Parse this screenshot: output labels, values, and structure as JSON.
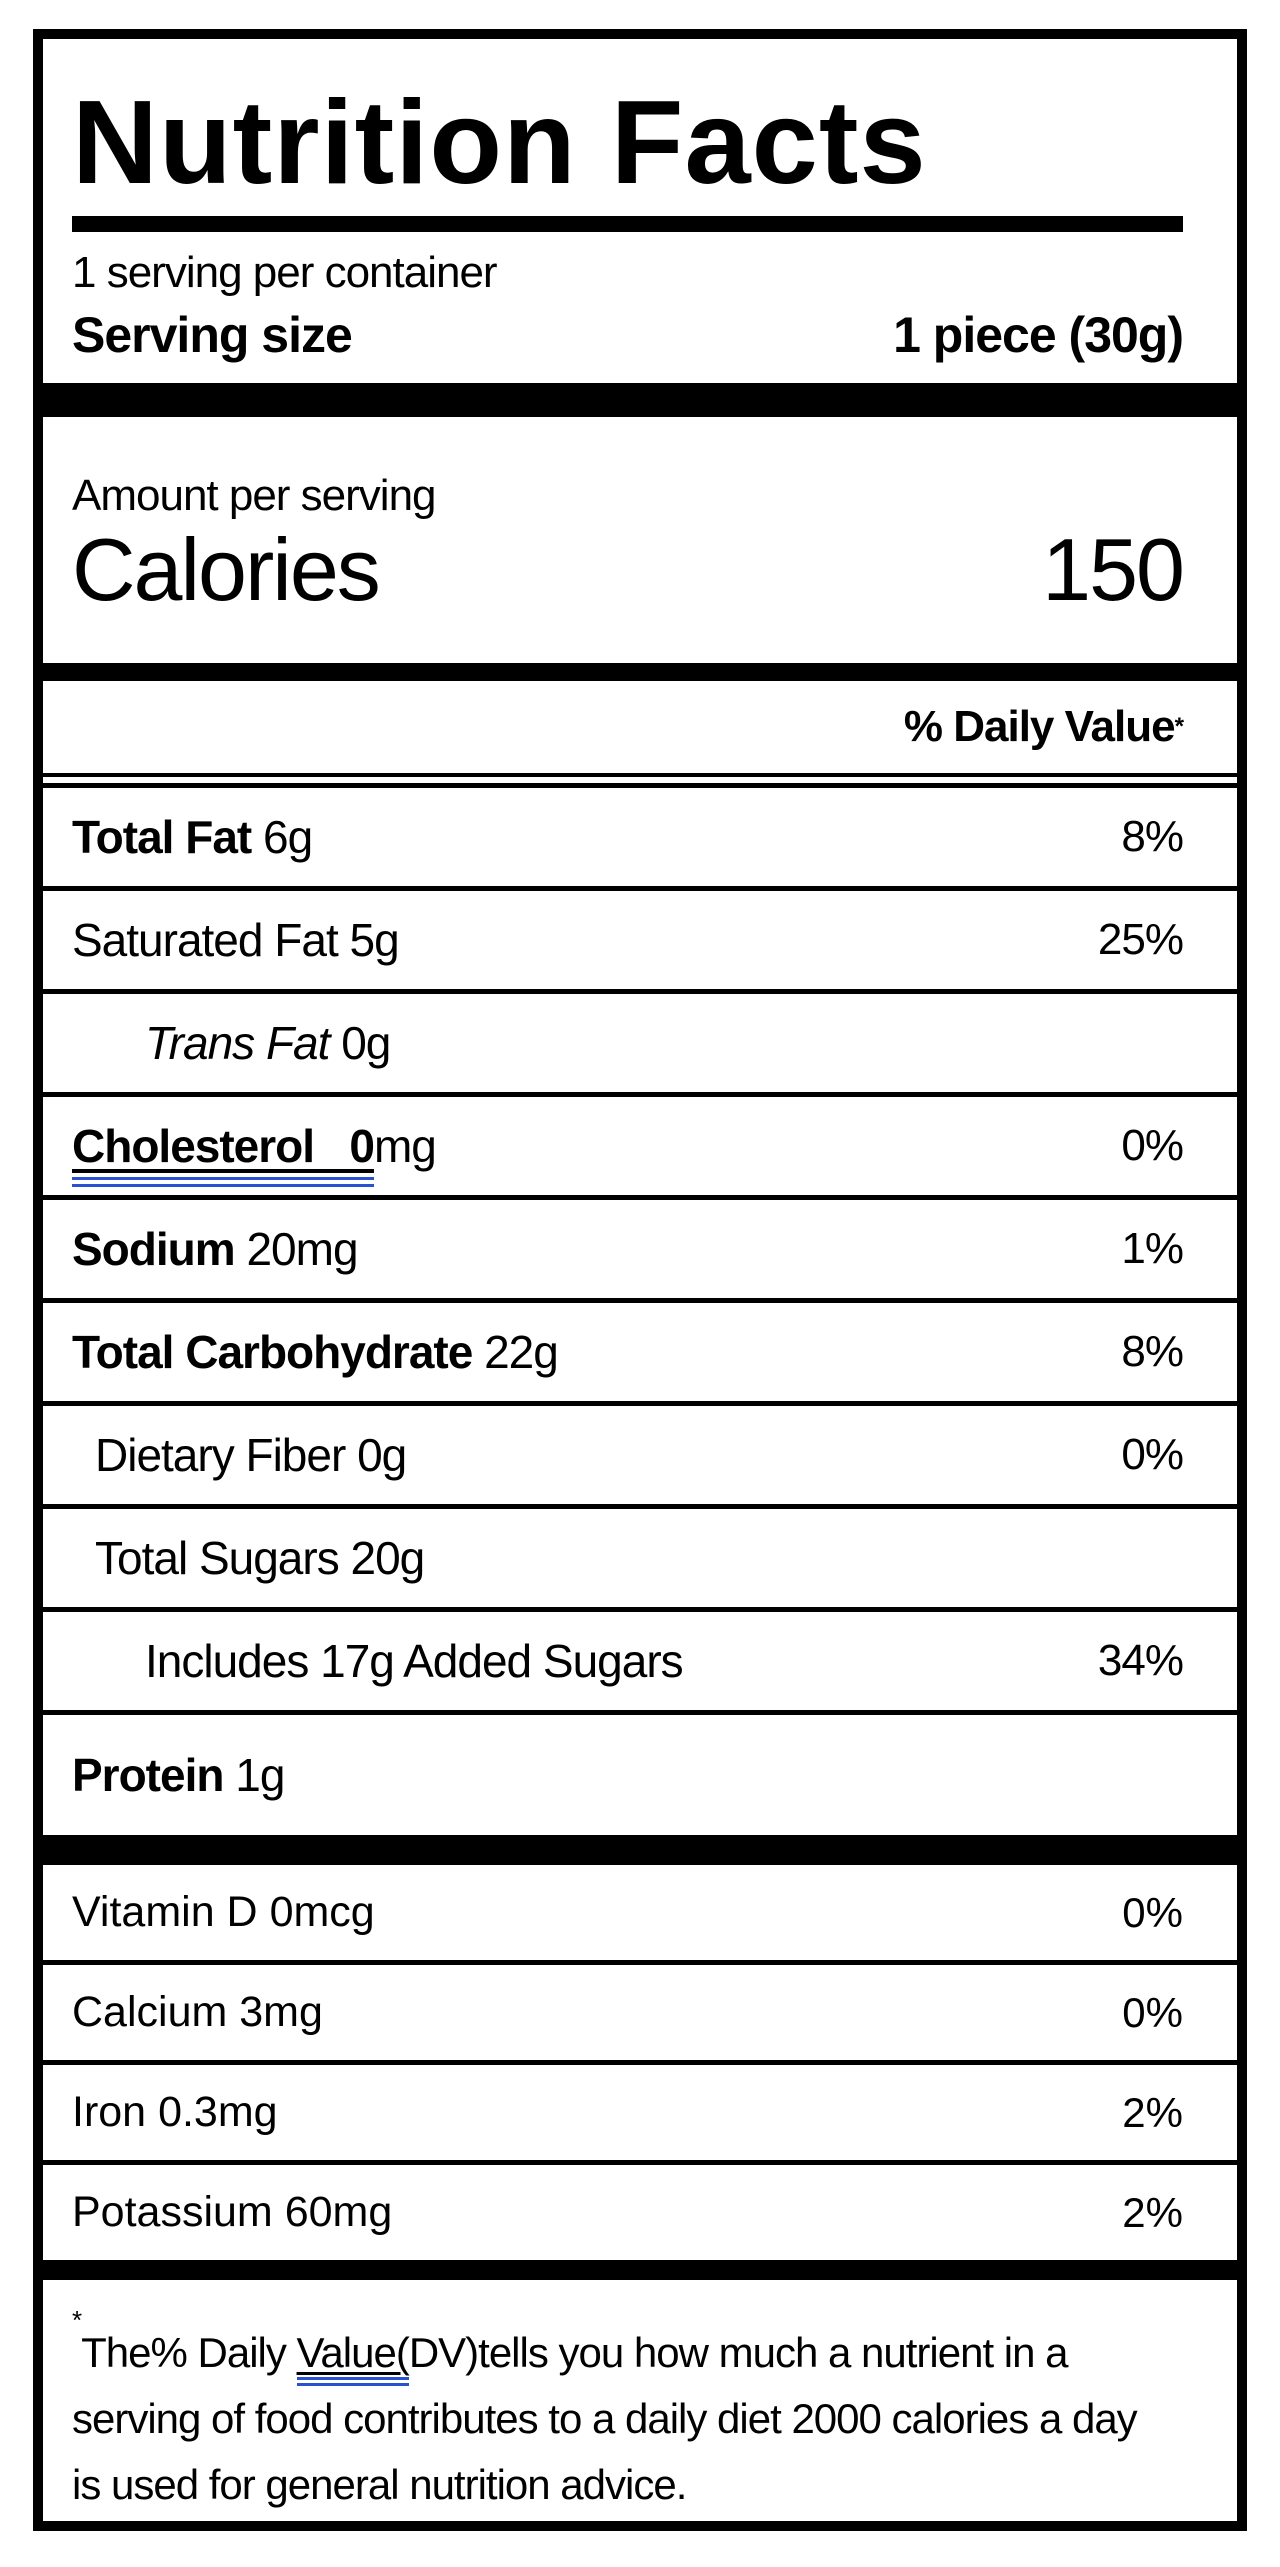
{
  "colors": {
    "ink": "#000000",
    "paper": "#ffffff",
    "mark_blue": "#2a52d0"
  },
  "header": {
    "title": "Nutrition Facts",
    "servings_per_container": "1 serving per container",
    "serving_size_label": "Serving size",
    "serving_size_value": "1 piece (30g)"
  },
  "calories": {
    "amount_per_serving": "Amount per serving",
    "label": "Calories",
    "value": "150"
  },
  "daily_value_header": {
    "label": "% Daily Value",
    "asterisk": "*"
  },
  "nutrients": [
    {
      "label": "Total Fat",
      "amount": "6g",
      "dv": "8%",
      "bold": true
    },
    {
      "label": "Saturated Fat",
      "amount": "5g",
      "dv": "25%"
    },
    {
      "label": "Trans Fat",
      "amount": "0g",
      "italic_label": true,
      "indent": 2
    },
    {
      "label": "Cholesterol",
      "amount": "0mg",
      "dv": "0%",
      "bold": true,
      "format_mark": true
    },
    {
      "label": "Sodium",
      "amount": "20mg",
      "dv": "1%",
      "bold": true
    },
    {
      "label": "Total Carbohydrate",
      "amount": "22g",
      "dv": "8%",
      "bold": true
    },
    {
      "label": "Dietary Fiber",
      "amount": "0g",
      "dv": "0%",
      "indent": 1
    },
    {
      "label": "Total Sugars",
      "amount": "20g",
      "indent": 1
    },
    {
      "label": "Includes 17g Added Sugars",
      "amount": "",
      "dv": "34%",
      "indent": 2
    },
    {
      "label": "Protein",
      "amount": "1g",
      "bold": true,
      "tall": true
    }
  ],
  "micronutrients": [
    {
      "label": "Vitamin D",
      "amount": "0mcg",
      "dv": "0%"
    },
    {
      "label": "Calcium",
      "amount": "3mg",
      "dv": "0%"
    },
    {
      "label": "Iron",
      "amount": "0.3mg",
      "dv": "2%"
    },
    {
      "label": "Potassium",
      "amount": "60mg",
      "dv": "2%"
    }
  ],
  "footnote": {
    "asterisk": "*",
    "segments": [
      {
        "text": "The% Daily "
      },
      {
        "text": "Value(",
        "marked": true
      },
      {
        "text": "DV)tells you how much a nutrient in a serving of food contributes to a daily diet 2000 calories a day is used for general nutrition advice."
      }
    ]
  }
}
